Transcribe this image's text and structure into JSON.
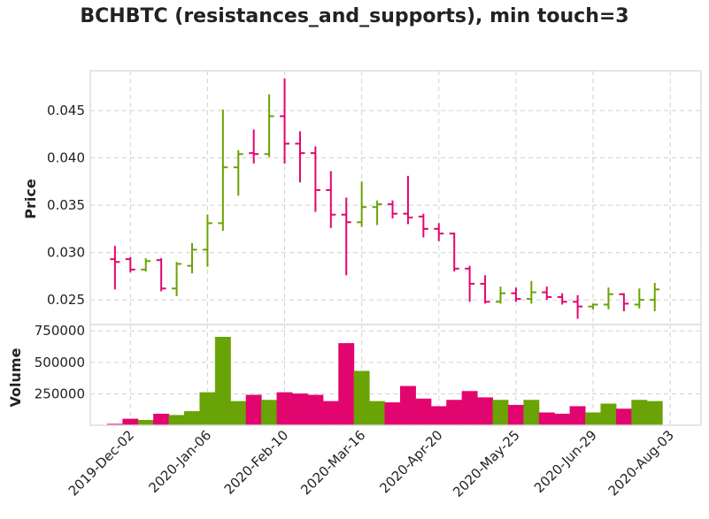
{
  "chart_data": {
    "type": "ohlc",
    "title": "BCHBTC (resistances_and_supports), min touch=3",
    "price_panel": {
      "ylabel": "Price",
      "ylim": [
        0.0224,
        0.0492
      ],
      "yticks": [
        0.025,
        0.03,
        0.035,
        0.04,
        0.045
      ],
      "ytick_labels": [
        "0.025",
        "0.030",
        "0.035",
        "0.040",
        "0.045"
      ]
    },
    "volume_panel": {
      "ylabel": "Volume",
      "ylim": [
        0,
        800000
      ],
      "yticks": [
        250000,
        500000,
        750000
      ],
      "ytick_labels": [
        "250000",
        "500000",
        "750000"
      ]
    },
    "x_ticks": [
      {
        "index": 1,
        "label": "2019-Dec-02"
      },
      {
        "index": 6,
        "label": "2020-Jan-06"
      },
      {
        "index": 11,
        "label": "2020-Feb-10"
      },
      {
        "index": 16,
        "label": "2020-Mar-16"
      },
      {
        "index": 21,
        "label": "2020-Apr-20"
      },
      {
        "index": 26,
        "label": "2020-May-25"
      },
      {
        "index": 31,
        "label": "2020-Jun-29"
      },
      {
        "index": 36,
        "label": "2020-Aug-03"
      }
    ],
    "x_range": [
      -1.6,
      38.0
    ],
    "colors": {
      "up": "#6aa305",
      "down": "#e3056f",
      "grid": "#d0d0d0",
      "frame": "#dddddd"
    },
    "grid": true,
    "bars": [
      {
        "o": 0.0293,
        "h": 0.0307,
        "l": 0.0261,
        "c": 0.029,
        "v": 10000
      },
      {
        "o": 0.0293,
        "h": 0.0295,
        "l": 0.0279,
        "c": 0.0282,
        "v": 50000
      },
      {
        "o": 0.0282,
        "h": 0.0294,
        "l": 0.028,
        "c": 0.0291,
        "v": 40000
      },
      {
        "o": 0.0292,
        "h": 0.0294,
        "l": 0.0259,
        "c": 0.0262,
        "v": 90000
      },
      {
        "o": 0.0262,
        "h": 0.029,
        "l": 0.0254,
        "c": 0.0288,
        "v": 80000
      },
      {
        "o": 0.0286,
        "h": 0.031,
        "l": 0.0278,
        "c": 0.0303,
        "v": 110000
      },
      {
        "o": 0.0303,
        "h": 0.034,
        "l": 0.0285,
        "c": 0.0331,
        "v": 260000
      },
      {
        "o": 0.0331,
        "h": 0.0451,
        "l": 0.0323,
        "c": 0.039,
        "v": 700000
      },
      {
        "o": 0.039,
        "h": 0.0408,
        "l": 0.036,
        "c": 0.0404,
        "v": 190000
      },
      {
        "o": 0.0405,
        "h": 0.043,
        "l": 0.0394,
        "c": 0.0404,
        "v": 240000
      },
      {
        "o": 0.0404,
        "h": 0.0467,
        "l": 0.0401,
        "c": 0.0444,
        "v": 200000
      },
      {
        "o": 0.0444,
        "h": 0.0484,
        "l": 0.0394,
        "c": 0.0415,
        "v": 260000
      },
      {
        "o": 0.0415,
        "h": 0.0428,
        "l": 0.0374,
        "c": 0.0405,
        "v": 250000
      },
      {
        "o": 0.0405,
        "h": 0.0412,
        "l": 0.0343,
        "c": 0.0366,
        "v": 240000
      },
      {
        "o": 0.0366,
        "h": 0.0386,
        "l": 0.0326,
        "c": 0.034,
        "v": 190000
      },
      {
        "o": 0.034,
        "h": 0.0358,
        "l": 0.0276,
        "c": 0.0332,
        "v": 650000
      },
      {
        "o": 0.0332,
        "h": 0.0375,
        "l": 0.0327,
        "c": 0.0348,
        "v": 430000
      },
      {
        "o": 0.0348,
        "h": 0.0355,
        "l": 0.0329,
        "c": 0.0351,
        "v": 190000
      },
      {
        "o": 0.0351,
        "h": 0.0355,
        "l": 0.0336,
        "c": 0.0341,
        "v": 180000
      },
      {
        "o": 0.0341,
        "h": 0.0381,
        "l": 0.033,
        "c": 0.0337,
        "v": 310000
      },
      {
        "o": 0.0338,
        "h": 0.0341,
        "l": 0.0316,
        "c": 0.0325,
        "v": 210000
      },
      {
        "o": 0.0325,
        "h": 0.0331,
        "l": 0.0312,
        "c": 0.032,
        "v": 150000
      },
      {
        "o": 0.032,
        "h": 0.0321,
        "l": 0.028,
        "c": 0.0283,
        "v": 200000
      },
      {
        "o": 0.0283,
        "h": 0.0286,
        "l": 0.0248,
        "c": 0.0267,
        "v": 270000
      },
      {
        "o": 0.0267,
        "h": 0.0276,
        "l": 0.0246,
        "c": 0.0248,
        "v": 220000
      },
      {
        "o": 0.0248,
        "h": 0.0264,
        "l": 0.0246,
        "c": 0.0257,
        "v": 200000
      },
      {
        "o": 0.0257,
        "h": 0.0263,
        "l": 0.0248,
        "c": 0.0251,
        "v": 160000
      },
      {
        "o": 0.0251,
        "h": 0.027,
        "l": 0.0246,
        "c": 0.0258,
        "v": 200000
      },
      {
        "o": 0.0258,
        "h": 0.0264,
        "l": 0.025,
        "c": 0.0253,
        "v": 100000
      },
      {
        "o": 0.0253,
        "h": 0.0257,
        "l": 0.0245,
        "c": 0.0248,
        "v": 90000
      },
      {
        "o": 0.0248,
        "h": 0.0255,
        "l": 0.023,
        "c": 0.0243,
        "v": 150000
      },
      {
        "o": 0.0243,
        "h": 0.0246,
        "l": 0.024,
        "c": 0.0245,
        "v": 100000
      },
      {
        "o": 0.0245,
        "h": 0.0263,
        "l": 0.024,
        "c": 0.0256,
        "v": 170000
      },
      {
        "o": 0.0256,
        "h": 0.0257,
        "l": 0.0238,
        "c": 0.0246,
        "v": 130000
      },
      {
        "o": 0.0245,
        "h": 0.0262,
        "l": 0.0241,
        "c": 0.025,
        "v": 200000
      },
      {
        "o": 0.025,
        "h": 0.0268,
        "l": 0.0238,
        "c": 0.0261,
        "v": 190000
      }
    ]
  }
}
